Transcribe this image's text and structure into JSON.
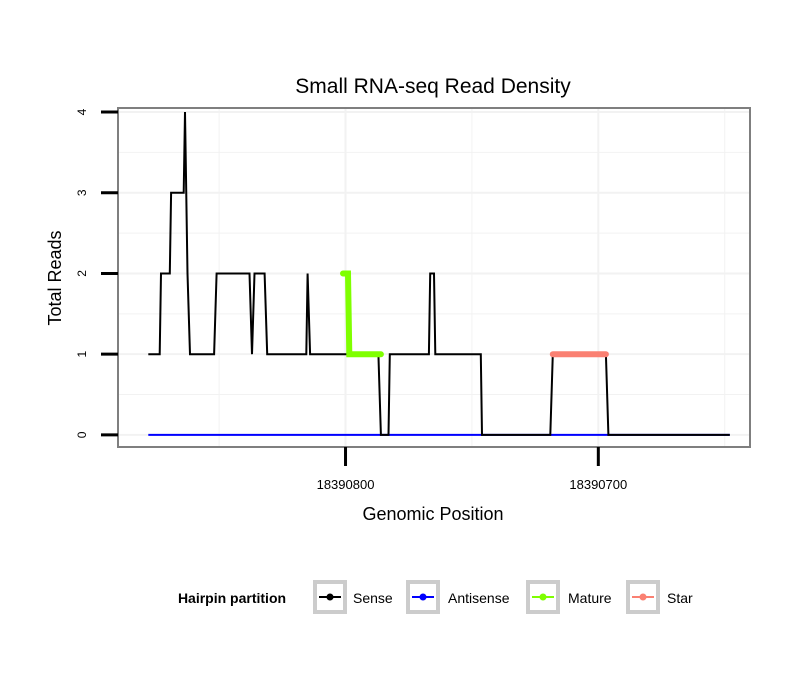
{
  "chart_data": {
    "type": "line",
    "title": "Small RNA-seq Read Density",
    "xlabel": "Genomic Position",
    "ylabel": "Total Reads",
    "x_reversed": true,
    "xlim": [
      18390890,
      18390640
    ],
    "ylim": [
      -0.15,
      4.05
    ],
    "x_ticks": [
      {
        "value": 18390800,
        "label": "18390800"
      },
      {
        "value": 18390700,
        "label": "18390700"
      }
    ],
    "y_ticks": [
      {
        "value": 0,
        "label": "0"
      },
      {
        "value": 1,
        "label": "1"
      },
      {
        "value": 2,
        "label": "2"
      },
      {
        "value": 3,
        "label": "3"
      },
      {
        "value": 4,
        "label": "4"
      }
    ],
    "grid": true,
    "legend": {
      "title": "Hairpin partition",
      "position": "bottom",
      "entries": [
        "Sense",
        "Antisense",
        "Mature",
        "Star"
      ]
    },
    "series": [
      {
        "name": "Sense",
        "color": "#000000",
        "points": [
          [
            18390878,
            1
          ],
          [
            18390873.5,
            1
          ],
          [
            18390873,
            2
          ],
          [
            18390869.5,
            2
          ],
          [
            18390869,
            3
          ],
          [
            18390864,
            3
          ],
          [
            18390863.5,
            4
          ],
          [
            18390862.5,
            2
          ],
          [
            18390861.5,
            1
          ],
          [
            18390852,
            1
          ],
          [
            18390851,
            2
          ],
          [
            18390838,
            2
          ],
          [
            18390837,
            1
          ],
          [
            18390836,
            2
          ],
          [
            18390832,
            2
          ],
          [
            18390831,
            1
          ],
          [
            18390815.5,
            1
          ],
          [
            18390815,
            2
          ],
          [
            18390814,
            1
          ],
          [
            18390787,
            1
          ],
          [
            18390786,
            0
          ],
          [
            18390783,
            0
          ],
          [
            18390782.5,
            1
          ],
          [
            18390767,
            1
          ],
          [
            18390766.5,
            2
          ],
          [
            18390765,
            2
          ],
          [
            18390764.5,
            1
          ],
          [
            18390746.5,
            1
          ],
          [
            18390746,
            0
          ],
          [
            18390719,
            0
          ],
          [
            18390718,
            1
          ],
          [
            18390697,
            1
          ],
          [
            18390696,
            0
          ],
          [
            18390648,
            0
          ]
        ]
      },
      {
        "name": "Antisense",
        "color": "#0000ff",
        "points": [
          [
            18390878,
            0
          ],
          [
            18390648,
            0
          ]
        ]
      },
      {
        "name": "Mature",
        "color": "#7fff00",
        "points": [
          [
            18390801,
            2
          ],
          [
            18390799,
            2
          ],
          [
            18390798.5,
            1
          ],
          [
            18390786,
            1
          ]
        ]
      },
      {
        "name": "Star",
        "color": "#fa8072",
        "points": [
          [
            18390718,
            1
          ],
          [
            18390697,
            1
          ]
        ]
      }
    ]
  }
}
